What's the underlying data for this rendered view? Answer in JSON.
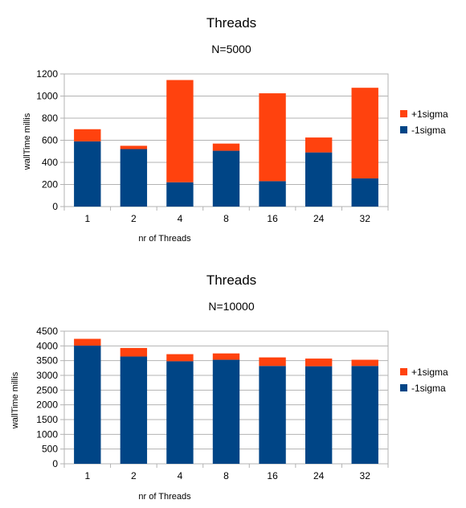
{
  "chart_data": [
    {
      "type": "bar",
      "stacked": true,
      "title": "Threads",
      "subtitle": "N=5000",
      "xlabel": "nr of Threads",
      "ylabel": "wallTime millis",
      "categories": [
        "1",
        "2",
        "4",
        "8",
        "16",
        "24",
        "32"
      ],
      "ylim": [
        0,
        1200
      ],
      "yticks": [
        0,
        200,
        400,
        600,
        800,
        1000,
        1200
      ],
      "grid": true,
      "legend_position": "right",
      "series": [
        {
          "name": "-1sigma",
          "color": "#004586",
          "values": [
            590,
            520,
            220,
            505,
            230,
            490,
            255
          ]
        },
        {
          "name": "+1sigma",
          "color": "#ff420e",
          "values": [
            110,
            30,
            925,
            65,
            795,
            135,
            820
          ]
        }
      ]
    },
    {
      "type": "bar",
      "stacked": true,
      "title": "Threads",
      "subtitle": "N=10000",
      "xlabel": "nr of Threads",
      "ylabel": "wallTime millis",
      "categories": [
        "1",
        "2",
        "4",
        "8",
        "16",
        "24",
        "32"
      ],
      "ylim": [
        0,
        4500
      ],
      "yticks": [
        0,
        500,
        1000,
        1500,
        2000,
        2500,
        3000,
        3500,
        4000,
        4500
      ],
      "grid": true,
      "legend_position": "right",
      "series": [
        {
          "name": "-1sigma",
          "color": "#004586",
          "values": [
            4010,
            3640,
            3480,
            3530,
            3320,
            3310,
            3320
          ]
        },
        {
          "name": "+1sigma",
          "color": "#ff420e",
          "values": [
            230,
            290,
            240,
            215,
            290,
            260,
            210
          ]
        }
      ]
    }
  ]
}
